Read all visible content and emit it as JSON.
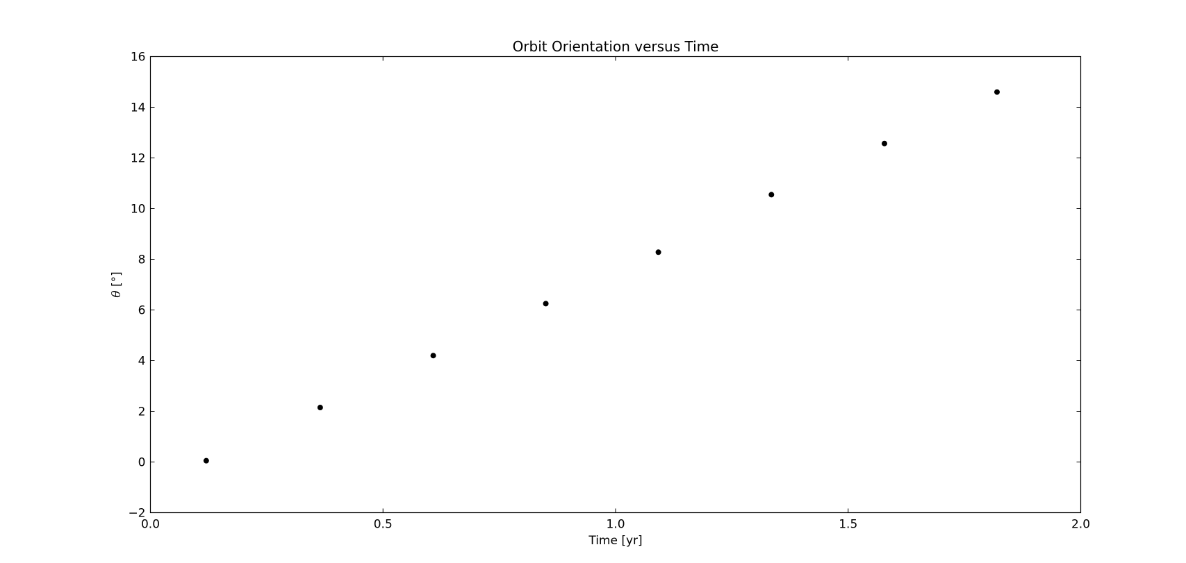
{
  "chart_data": {
    "type": "scatter",
    "title": "Orbit Orientation versus Time",
    "xlabel": "Time [yr]",
    "ylabel": {
      "symbol": "θ",
      "unit": "[°]"
    },
    "xlim": [
      0.0,
      2.0
    ],
    "ylim": [
      -2,
      16
    ],
    "xticks": [
      0.0,
      0.5,
      1.0,
      1.5,
      2.0
    ],
    "xtick_labels": [
      "0.0",
      "0.5",
      "1.0",
      "1.5",
      "2.0"
    ],
    "yticks": [
      -2,
      0,
      2,
      4,
      6,
      8,
      10,
      12,
      14,
      16
    ],
    "ytick_labels": [
      "−2",
      "0",
      "2",
      "4",
      "6",
      "8",
      "10",
      "12",
      "14",
      "16"
    ],
    "grid": false,
    "legend": "none",
    "marker_color": "#000000",
    "series": [
      {
        "x": [
          0.12,
          0.365,
          0.608,
          0.85,
          1.092,
          1.335,
          1.578,
          1.82
        ],
        "y": [
          0.05,
          2.15,
          4.2,
          6.25,
          8.28,
          10.55,
          12.57,
          14.6
        ]
      }
    ]
  }
}
